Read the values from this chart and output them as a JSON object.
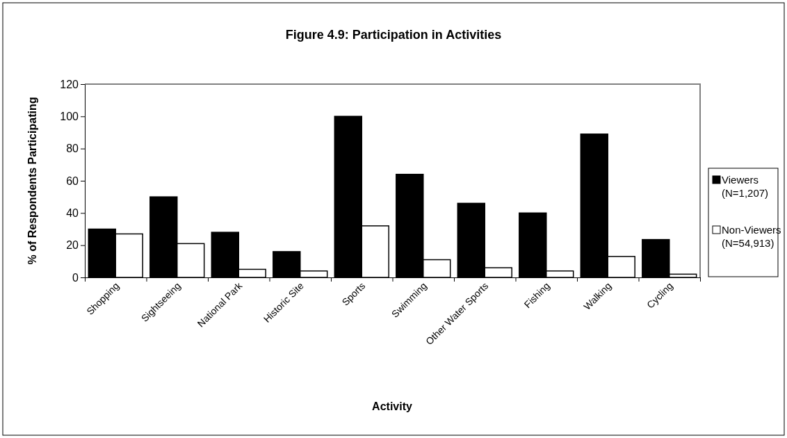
{
  "chart_data": {
    "type": "bar",
    "title": "Figure 4.9: Participation in Activities",
    "xlabel": "Activity",
    "ylabel": "% of Respondents Participating",
    "categories": [
      "Shopping",
      "Sightseeing",
      "National Park",
      "Historic Site",
      "Sports",
      "Swimming",
      "Other Water Sports",
      "Fishing",
      "Walking",
      "Cycling"
    ],
    "series": [
      {
        "name": "Viewers (N=1,207)",
        "color": "#000000",
        "values": [
          30,
          50,
          28,
          16,
          100,
          64,
          46,
          40,
          89,
          23.5
        ]
      },
      {
        "name": "Non-Viewers (N=54,913)",
        "color": "#ffffff",
        "values": [
          27,
          21,
          5,
          4,
          32,
          11,
          6,
          4,
          13,
          2
        ]
      }
    ],
    "ylim": [
      0,
      120
    ],
    "yticks": [
      0,
      20,
      40,
      60,
      80,
      100,
      120
    ],
    "grid": false,
    "legend": "right"
  }
}
